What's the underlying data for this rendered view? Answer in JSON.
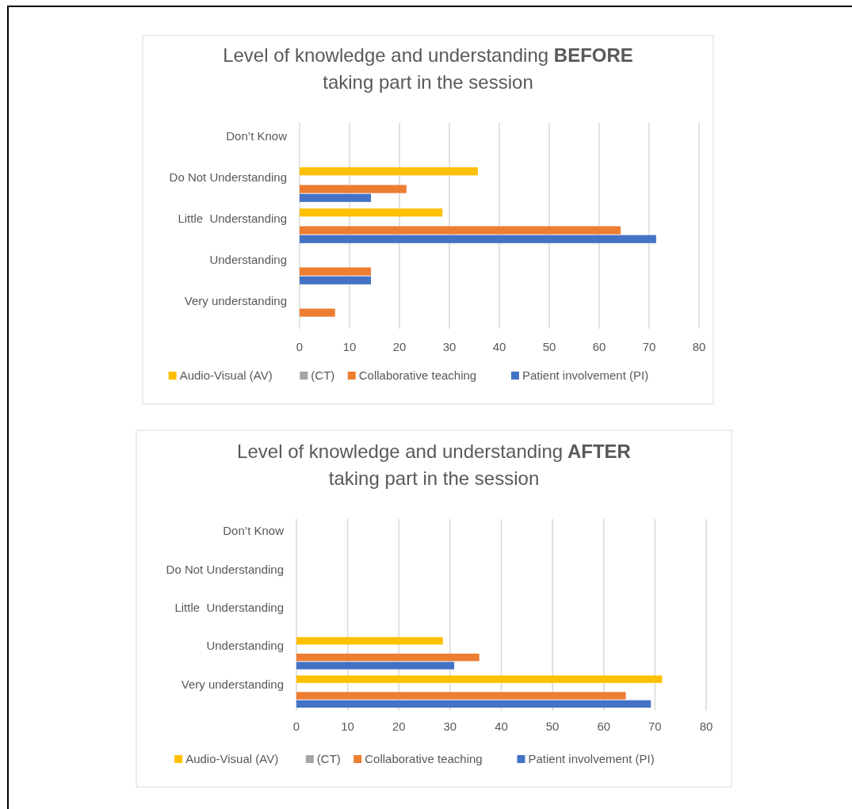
{
  "chart_data": [
    {
      "type": "bar",
      "orientation": "horizontal",
      "title": "Level of knowledge and understanding BEFORE taking part in the session",
      "categories": [
        "Don’t Know",
        "Do Not Understanding",
        "Little  Understanding",
        "Understanding",
        "Very understanding"
      ],
      "xlim": [
        0,
        80
      ],
      "xticks": [
        0,
        10,
        20,
        30,
        40,
        50,
        60,
        70,
        80
      ],
      "grid": "x",
      "legend": "bottom",
      "series": [
        {
          "name": "Audio-Visual (AV)",
          "color": "#ffc000",
          "values": [
            0,
            35.7,
            28.6,
            0,
            0
          ]
        },
        {
          "name": "(CT)",
          "color": "#a5a5a5",
          "values": [
            null,
            null,
            null,
            null,
            null
          ]
        },
        {
          "name": "Collaborative teaching",
          "color": "#ed7d31",
          "values": [
            0,
            21.4,
            64.3,
            14.3,
            7.1
          ]
        },
        {
          "name": "Patient involvement (PI)",
          "color": "#4472c4",
          "values": [
            0,
            14.3,
            71.4,
            14.3,
            0
          ]
        }
      ]
    },
    {
      "type": "bar",
      "orientation": "horizontal",
      "title": "Level of knowledge and understanding AFTER taking part in the session",
      "categories": [
        "Don’t Know",
        "Do Not Understanding",
        "Little  Understanding",
        "Understanding",
        "Very understanding"
      ],
      "xlim": [
        0,
        80
      ],
      "xticks": [
        0,
        10,
        20,
        30,
        40,
        50,
        60,
        70,
        80
      ],
      "grid": "x",
      "legend": "bottom",
      "series": [
        {
          "name": "Audio-Visual (AV)",
          "color": "#ffc000",
          "values": [
            0,
            0,
            0,
            28.6,
            71.4
          ]
        },
        {
          "name": "(CT)",
          "color": "#a5a5a5",
          "values": [
            null,
            null,
            null,
            null,
            null
          ]
        },
        {
          "name": "Collaborative teaching",
          "color": "#ed7d31",
          "values": [
            0,
            0,
            0,
            35.7,
            64.3
          ]
        },
        {
          "name": "Patient involvement (PI)",
          "color": "#4472c4",
          "values": [
            0,
            0,
            0,
            30.8,
            69.2
          ]
        }
      ]
    }
  ]
}
